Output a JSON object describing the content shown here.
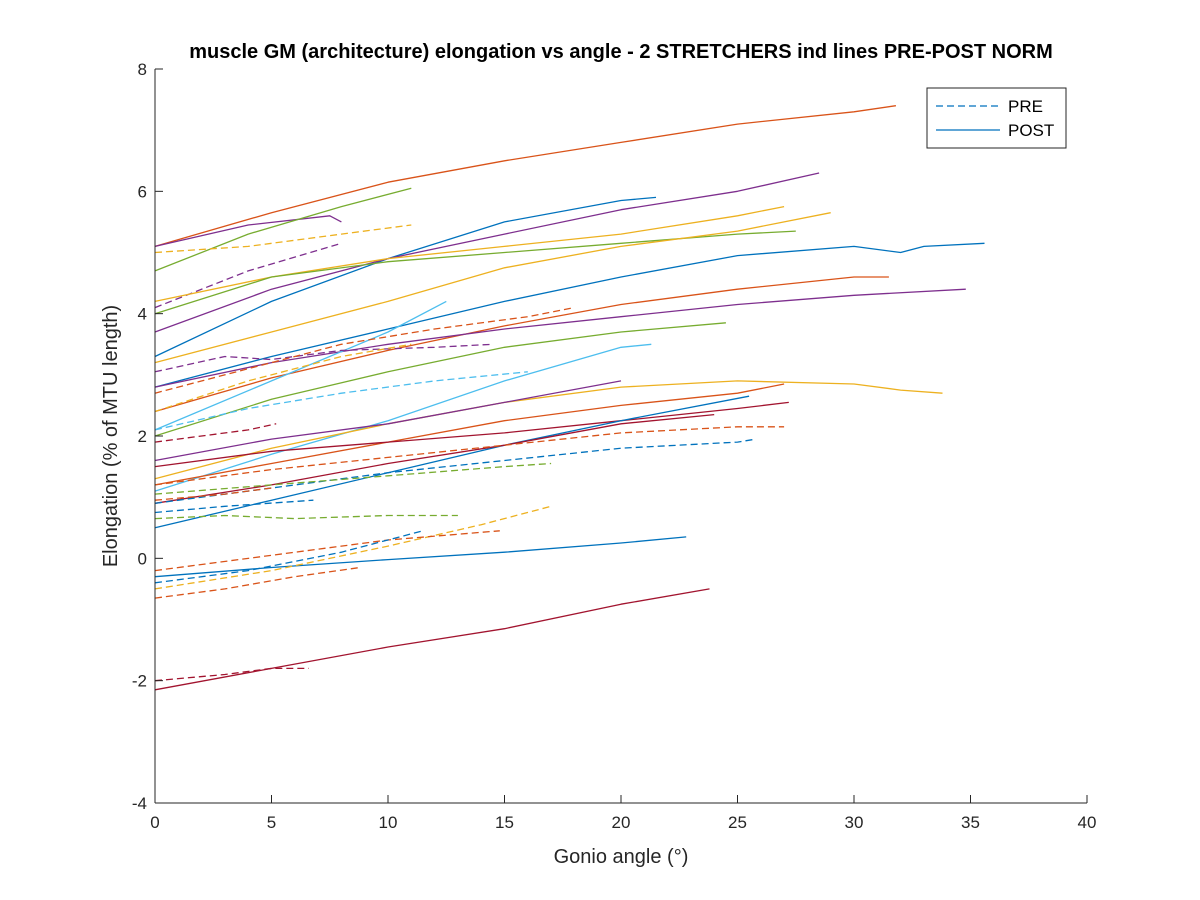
{
  "chart_data": {
    "type": "line",
    "title": "muscle GM (architecture) elongation vs angle - 2 STRETCHERS ind lines PRE-POST NORM",
    "xlabel": "Gonio angle (°)",
    "ylabel": "Elongation (% of MTU length)",
    "xlim": [
      0,
      40
    ],
    "ylim": [
      -4,
      8
    ],
    "x_ticks": [
      0,
      5,
      10,
      15,
      20,
      25,
      30,
      35,
      40
    ],
    "y_ticks": [
      -4,
      -2,
      0,
      2,
      4,
      6,
      8
    ],
    "x_tick_labels": [
      "0",
      "5",
      "10",
      "15",
      "20",
      "25",
      "30",
      "35",
      "40"
    ],
    "y_tick_labels": [
      "-4",
      "-2",
      "0",
      "2",
      "4",
      "6",
      "8"
    ],
    "grid": false,
    "legend": {
      "position": "top-right",
      "entries": [
        {
          "label": "PRE",
          "style": "dashed",
          "color": "#0072BD"
        },
        {
          "label": "POST",
          "style": "solid",
          "color": "#0072BD"
        }
      ]
    },
    "series": [
      {
        "style": "solid",
        "color": "#D95319",
        "x": [
          0,
          5,
          10,
          15,
          20,
          25,
          30,
          31.8
        ],
        "y": [
          5.1,
          5.65,
          6.15,
          6.5,
          6.8,
          7.1,
          7.3,
          7.4
        ]
      },
      {
        "style": "solid",
        "color": "#7E2F8E",
        "x": [
          0,
          4,
          7.5,
          8
        ],
        "y": [
          5.1,
          5.45,
          5.6,
          5.5
        ]
      },
      {
        "style": "solid",
        "color": "#77AC30",
        "x": [
          0,
          4,
          8,
          11
        ],
        "y": [
          4.7,
          5.3,
          5.75,
          6.05
        ]
      },
      {
        "style": "dashed",
        "color": "#EDB120",
        "x": [
          0,
          4,
          8,
          11
        ],
        "y": [
          5.0,
          5.1,
          5.3,
          5.45
        ]
      },
      {
        "style": "dashed",
        "color": "#7E2F8E",
        "x": [
          0,
          4,
          8
        ],
        "y": [
          4.1,
          4.7,
          5.15
        ]
      },
      {
        "style": "solid",
        "color": "#0072BD",
        "x": [
          0,
          5,
          10,
          15,
          20,
          21.5
        ],
        "y": [
          3.3,
          4.2,
          4.9,
          5.5,
          5.85,
          5.9
        ]
      },
      {
        "style": "solid",
        "color": "#7E2F8E",
        "x": [
          0,
          5,
          10,
          15,
          20,
          25,
          28.5
        ],
        "y": [
          3.7,
          4.4,
          4.9,
          5.3,
          5.7,
          6.0,
          6.3
        ]
      },
      {
        "style": "solid",
        "color": "#EDB120",
        "x": [
          0,
          5,
          10,
          15,
          20,
          25,
          27
        ],
        "y": [
          4.2,
          4.6,
          4.9,
          5.1,
          5.3,
          5.6,
          5.75
        ]
      },
      {
        "style": "solid",
        "color": "#77AC30",
        "x": [
          0,
          5,
          10,
          15,
          20,
          25,
          27.5
        ],
        "y": [
          4.0,
          4.6,
          4.85,
          5.0,
          5.15,
          5.3,
          5.35
        ]
      },
      {
        "style": "solid",
        "color": "#EDB120",
        "x": [
          0,
          5,
          10,
          15,
          20,
          25,
          29
        ],
        "y": [
          3.2,
          3.7,
          4.2,
          4.75,
          5.1,
          5.35,
          5.65
        ]
      },
      {
        "style": "solid",
        "color": "#0072BD",
        "x": [
          0,
          5,
          10,
          15,
          20,
          25,
          30,
          32,
          33,
          35.6
        ],
        "y": [
          2.8,
          3.3,
          3.75,
          4.2,
          4.6,
          4.95,
          5.1,
          5.0,
          5.1,
          5.15
        ]
      },
      {
        "style": "solid",
        "color": "#D95319",
        "x": [
          0,
          5,
          10,
          15,
          20,
          25,
          30,
          31.5
        ],
        "y": [
          2.4,
          2.95,
          3.4,
          3.8,
          4.15,
          4.4,
          4.6,
          4.6
        ]
      },
      {
        "style": "solid",
        "color": "#7E2F8E",
        "x": [
          0,
          5,
          10,
          15,
          20,
          25,
          30,
          34.8
        ],
        "y": [
          2.8,
          3.2,
          3.5,
          3.75,
          3.95,
          4.15,
          4.3,
          4.4
        ]
      },
      {
        "style": "solid",
        "color": "#77AC30",
        "x": [
          0,
          5,
          10,
          15,
          20,
          24.5
        ],
        "y": [
          2.0,
          2.6,
          3.05,
          3.45,
          3.7,
          3.85
        ]
      },
      {
        "style": "solid",
        "color": "#4DBEEE",
        "x": [
          0,
          5,
          10,
          12.5
        ],
        "y": [
          2.1,
          2.9,
          3.7,
          4.2
        ]
      },
      {
        "style": "solid",
        "color": "#4DBEEE",
        "x": [
          0,
          5,
          10,
          15,
          20,
          21.3
        ],
        "y": [
          1.1,
          1.7,
          2.25,
          2.9,
          3.45,
          3.5
        ]
      },
      {
        "style": "solid",
        "color": "#EDB120",
        "x": [
          0,
          5,
          10,
          15,
          20,
          25,
          30,
          32,
          33.8
        ],
        "y": [
          1.3,
          1.8,
          2.2,
          2.55,
          2.8,
          2.9,
          2.85,
          2.75,
          2.7
        ]
      },
      {
        "style": "solid",
        "color": "#7E2F8E",
        "x": [
          0,
          5,
          10,
          15,
          20
        ],
        "y": [
          1.6,
          1.95,
          2.2,
          2.55,
          2.9
        ]
      },
      {
        "style": "solid",
        "color": "#D95319",
        "x": [
          0,
          5,
          10,
          15,
          20,
          25,
          27
        ],
        "y": [
          1.2,
          1.55,
          1.9,
          2.25,
          2.5,
          2.7,
          2.85
        ]
      },
      {
        "style": "solid",
        "color": "#A2142F",
        "x": [
          0,
          5,
          10,
          15,
          20,
          25,
          27.2
        ],
        "y": [
          1.5,
          1.75,
          1.9,
          2.05,
          2.25,
          2.45,
          2.55
        ]
      },
      {
        "style": "solid",
        "color": "#0072BD",
        "x": [
          0,
          5,
          10,
          15,
          20,
          25.5
        ],
        "y": [
          0.5,
          0.95,
          1.4,
          1.85,
          2.25,
          2.65
        ]
      },
      {
        "style": "solid",
        "color": "#A2142F",
        "x": [
          0,
          5,
          10,
          15,
          20,
          24
        ],
        "y": [
          0.9,
          1.2,
          1.55,
          1.85,
          2.2,
          2.35
        ]
      },
      {
        "style": "solid",
        "color": "#0072BD",
        "x": [
          0,
          5,
          10,
          15,
          20,
          22.8
        ],
        "y": [
          -0.3,
          -0.15,
          -0.02,
          0.1,
          0.25,
          0.35
        ]
      },
      {
        "style": "solid",
        "color": "#A2142F",
        "x": [
          0,
          5,
          10,
          15,
          20,
          23.8
        ],
        "y": [
          -2.15,
          -1.8,
          -1.45,
          -1.15,
          -0.75,
          -0.5
        ]
      },
      {
        "style": "dashed",
        "color": "#7E2F8E",
        "x": [
          0,
          3,
          5,
          8,
          12,
          14.5
        ],
        "y": [
          3.05,
          3.3,
          3.25,
          3.4,
          3.45,
          3.5
        ]
      },
      {
        "style": "dashed",
        "color": "#D95319",
        "x": [
          0,
          4,
          8,
          12,
          16,
          18
        ],
        "y": [
          2.7,
          3.1,
          3.5,
          3.75,
          3.95,
          4.1
        ]
      },
      {
        "style": "dashed",
        "color": "#EDB120",
        "x": [
          0,
          4,
          8,
          11
        ],
        "y": [
          2.4,
          2.9,
          3.3,
          3.5
        ]
      },
      {
        "style": "dashed",
        "color": "#4DBEEE",
        "x": [
          0,
          4,
          8,
          12,
          16
        ],
        "y": [
          2.1,
          2.45,
          2.7,
          2.9,
          3.05
        ]
      },
      {
        "style": "dashed",
        "color": "#A2142F",
        "x": [
          0,
          2,
          4,
          5.2
        ],
        "y": [
          1.9,
          2.0,
          2.1,
          2.2
        ]
      },
      {
        "style": "dashed",
        "color": "#D95319",
        "x": [
          0,
          5,
          10,
          15,
          20,
          25,
          27
        ],
        "y": [
          1.2,
          1.45,
          1.65,
          1.85,
          2.05,
          2.15,
          2.15
        ]
      },
      {
        "style": "dashed",
        "color": "#0072BD",
        "x": [
          0,
          5,
          10,
          15,
          20,
          25,
          25.8
        ],
        "y": [
          0.9,
          1.15,
          1.4,
          1.6,
          1.8,
          1.9,
          1.95
        ]
      },
      {
        "style": "dashed",
        "color": "#77AC30",
        "x": [
          0,
          5,
          10,
          15,
          17
        ],
        "y": [
          1.05,
          1.2,
          1.35,
          1.5,
          1.55
        ]
      },
      {
        "style": "dashed",
        "color": "#D95319",
        "x": [
          0,
          3,
          5
        ],
        "y": [
          0.95,
          1.05,
          1.15
        ]
      },
      {
        "style": "dashed",
        "color": "#0072BD",
        "x": [
          0,
          3,
          6.8
        ],
        "y": [
          0.75,
          0.85,
          0.95
        ]
      },
      {
        "style": "dashed",
        "color": "#77AC30",
        "x": [
          0,
          3,
          6,
          10,
          13
        ],
        "y": [
          0.65,
          0.7,
          0.65,
          0.7,
          0.7
        ]
      },
      {
        "style": "dashed",
        "color": "#EDB120",
        "x": [
          0,
          5,
          10,
          14,
          17
        ],
        "y": [
          -0.5,
          -0.2,
          0.2,
          0.55,
          0.85
        ]
      },
      {
        "style": "dashed",
        "color": "#D95319",
        "x": [
          0,
          5,
          10,
          14.8
        ],
        "y": [
          -0.2,
          0.05,
          0.3,
          0.45
        ]
      },
      {
        "style": "dashed",
        "color": "#0072BD",
        "x": [
          0,
          4,
          8,
          11.5
        ],
        "y": [
          -0.4,
          -0.2,
          0.1,
          0.45
        ]
      },
      {
        "style": "dashed",
        "color": "#D95319",
        "x": [
          0,
          3,
          6,
          8.8
        ],
        "y": [
          -0.65,
          -0.5,
          -0.3,
          -0.15
        ]
      },
      {
        "style": "dashed",
        "color": "#A2142F",
        "x": [
          0,
          3,
          5,
          6.6
        ],
        "y": [
          -2.0,
          -1.9,
          -1.8,
          -1.8
        ]
      }
    ]
  }
}
